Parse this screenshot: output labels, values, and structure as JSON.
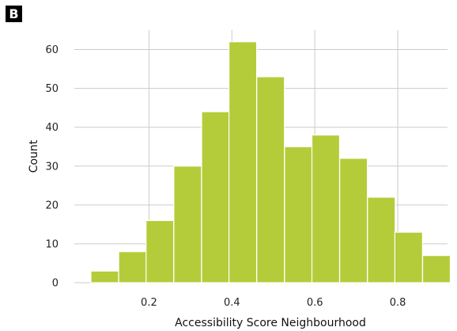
{
  "panel_label": "B",
  "chart_data": {
    "type": "bar",
    "subtype": "histogram",
    "title": "",
    "xlabel": "Accessibility Score Neighbourhood",
    "ylabel": "Count",
    "bin_width": 0.0667,
    "bin_starts": [
      0.06,
      0.127,
      0.193,
      0.26,
      0.327,
      0.393,
      0.46,
      0.527,
      0.593,
      0.66,
      0.727,
      0.793,
      0.86
    ],
    "values": [
      3,
      8,
      16,
      30,
      44,
      62,
      53,
      35,
      38,
      32,
      22,
      13,
      7
    ],
    "xlim": [
      0.02,
      0.92
    ],
    "ylim": [
      0,
      65
    ],
    "xticks": [
      "0.2",
      "0.4",
      "0.6",
      "0.8"
    ],
    "yticks": [
      "0",
      "10",
      "20",
      "30",
      "40",
      "50",
      "60"
    ],
    "grid": true,
    "bar_color": "#b5cc3a",
    "grid_color": "#cccccc"
  }
}
